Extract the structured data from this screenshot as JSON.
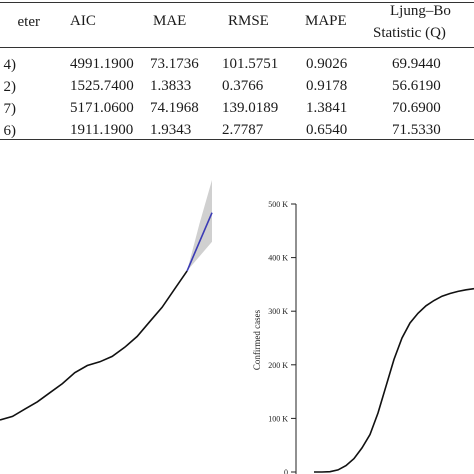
{
  "table": {
    "headers": {
      "param": "eter",
      "aic": "AIC",
      "mae": "MAE",
      "rmse": "RMSE",
      "mape": "MAPE",
      "ljung_line1": "Ljung–Bo",
      "ljung_line2": "Statistic (Q)"
    },
    "rows": [
      {
        "param": "4)",
        "aic": "4991.1900",
        "mae": "73.1736",
        "rmse": "101.5751",
        "mape": "0.9026",
        "q": "69.9440"
      },
      {
        "param": "2)",
        "aic": "1525.7400",
        "mae": "1.3833",
        "rmse": "0.3766",
        "mape": "0.9178",
        "q": "56.6190"
      },
      {
        "param": "7)",
        "aic": "5171.0600",
        "mae": "74.1968",
        "rmse": "139.0189",
        "mape": "1.3841",
        "q": "70.6900"
      },
      {
        "param": ". 6)",
        "aic": "1911.1900",
        "mae": "1.9343",
        "rmse": "2.7787",
        "mape": "0.6540",
        "q": "71.5330"
      }
    ]
  },
  "chart_data": [
    {
      "type": "line",
      "description_panel": "left-forecast",
      "x": [
        0,
        1,
        2,
        3,
        4,
        5,
        6,
        7,
        8,
        9,
        10,
        11,
        12,
        13,
        14,
        15,
        16,
        17
      ],
      "series": [
        {
          "values": [
            10,
            12,
            16,
            20,
            25,
            30,
            36,
            40,
            42,
            45,
            50,
            56,
            64,
            72,
            82,
            92,
            null,
            null
          ]
        },
        {
          "values": [
            null,
            null,
            null,
            null,
            null,
            null,
            null,
            null,
            null,
            null,
            null,
            null,
            null,
            null,
            null,
            92,
            108,
            124
          ]
        }
      ],
      "band_upper": [
        null,
        null,
        null,
        null,
        null,
        null,
        null,
        null,
        null,
        null,
        null,
        null,
        null,
        null,
        null,
        92,
        118,
        142
      ],
      "band_lower": [
        null,
        null,
        null,
        null,
        null,
        null,
        null,
        null,
        null,
        null,
        null,
        null,
        null,
        null,
        null,
        92,
        100,
        108
      ],
      "colors": {
        "observed": "#111111",
        "forecast": "#3b3bb5",
        "band": "#c8c8c8"
      }
    },
    {
      "type": "line",
      "ylabel": "Confirmed cases",
      "yticks": [
        "0",
        "100 K",
        "200 K",
        "300 K",
        "400 K",
        "500 K"
      ],
      "ylim": [
        0,
        500000
      ],
      "x": [
        0,
        1,
        2,
        3,
        4,
        5,
        6,
        7,
        8,
        9,
        10,
        11,
        12,
        13,
        14,
        15,
        16,
        17,
        18,
        19,
        20
      ],
      "series": [
        {
          "values": [
            0,
            0,
            500,
            4000,
            12000,
            25000,
            45000,
            70000,
            110000,
            160000,
            210000,
            250000,
            278000,
            296000,
            310000,
            320000,
            328000,
            333000,
            337000,
            340000,
            342000
          ]
        }
      ],
      "colors": {
        "line": "#111111"
      }
    }
  ]
}
